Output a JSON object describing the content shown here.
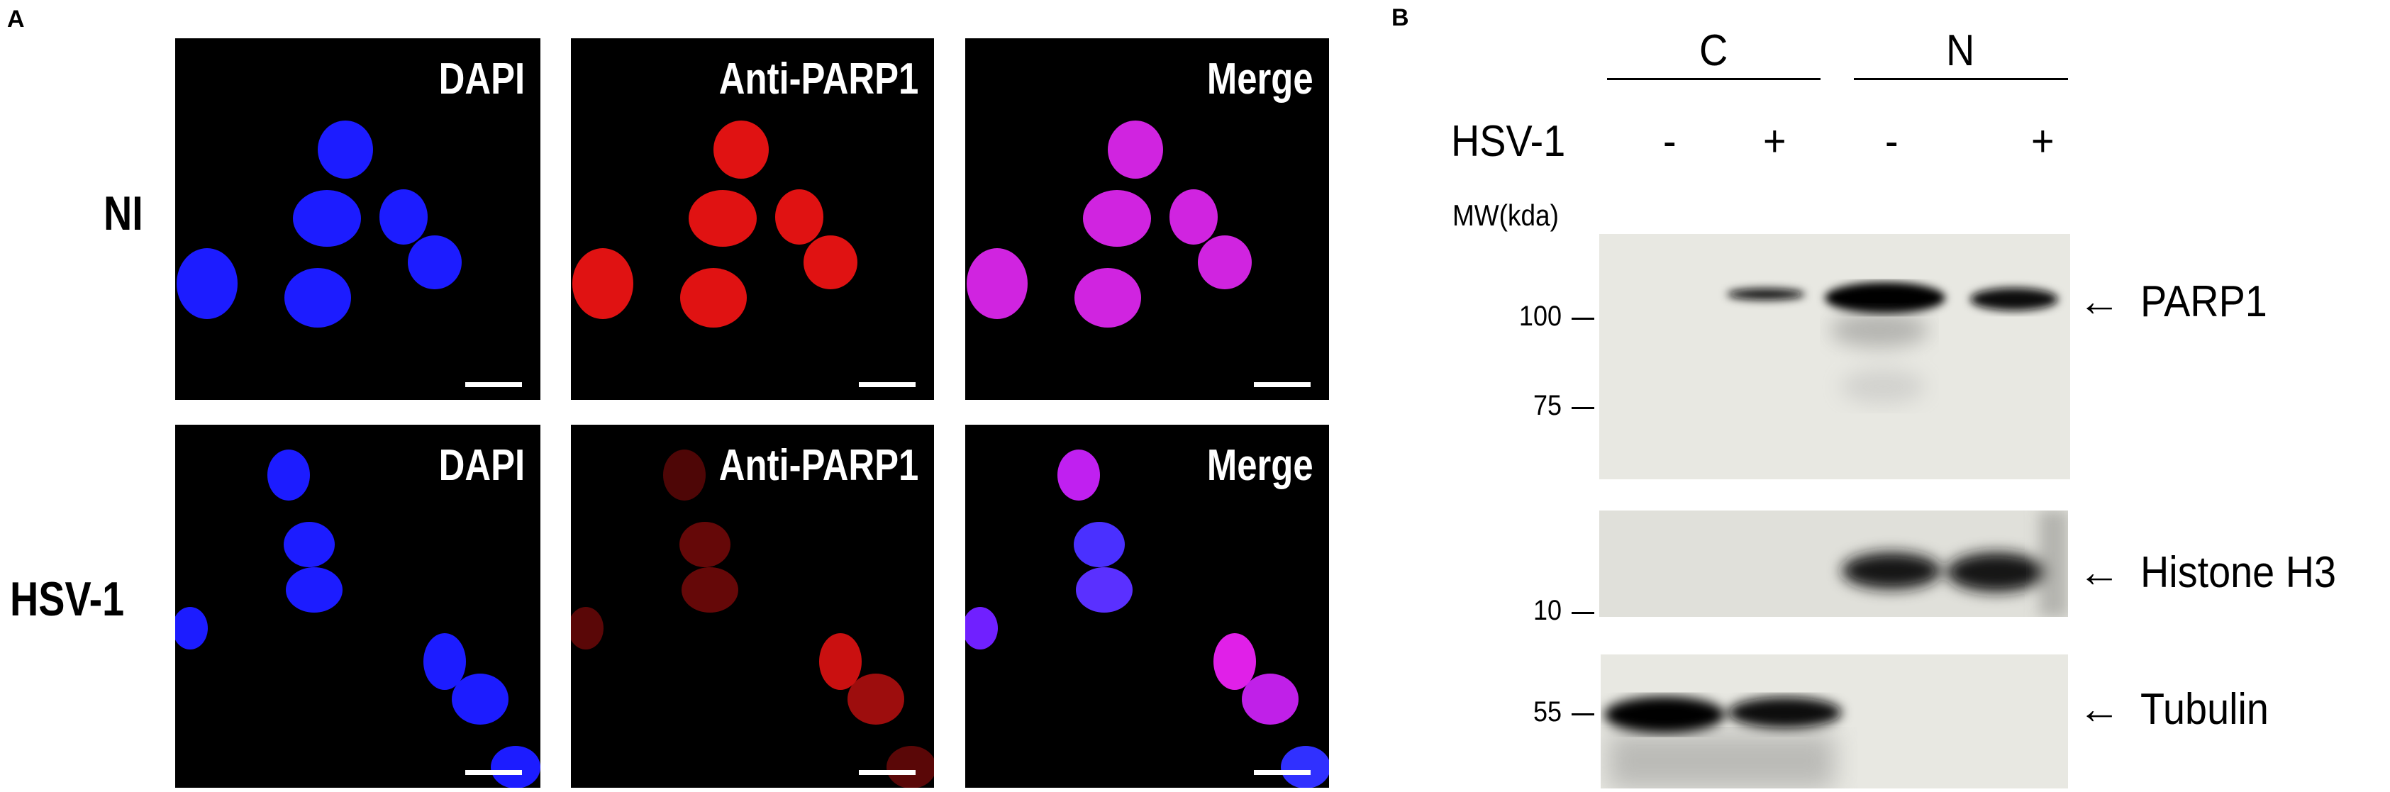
{
  "panel_a": {
    "letter": "A",
    "row_labels": [
      "NI",
      "HSV-1"
    ],
    "column_labels": [
      "DAPI",
      "Anti-PARP1",
      "Merge"
    ],
    "channel_colors": {
      "dapi": "#1c1cff",
      "parp1": "#e01212",
      "merge": "#d024e0"
    }
  },
  "panel_b": {
    "letter": "B",
    "fractions": [
      "C",
      "N"
    ],
    "treatment_label": "HSV-1",
    "lane_signs": [
      "-",
      "+",
      "-",
      "+"
    ],
    "mw_header": "MW(kda)",
    "markers": [
      "100",
      "75",
      "10",
      "55"
    ],
    "proteins": [
      "PARP1",
      "Histone H3",
      "Tubulin"
    ],
    "arrow_glyph": "←"
  }
}
